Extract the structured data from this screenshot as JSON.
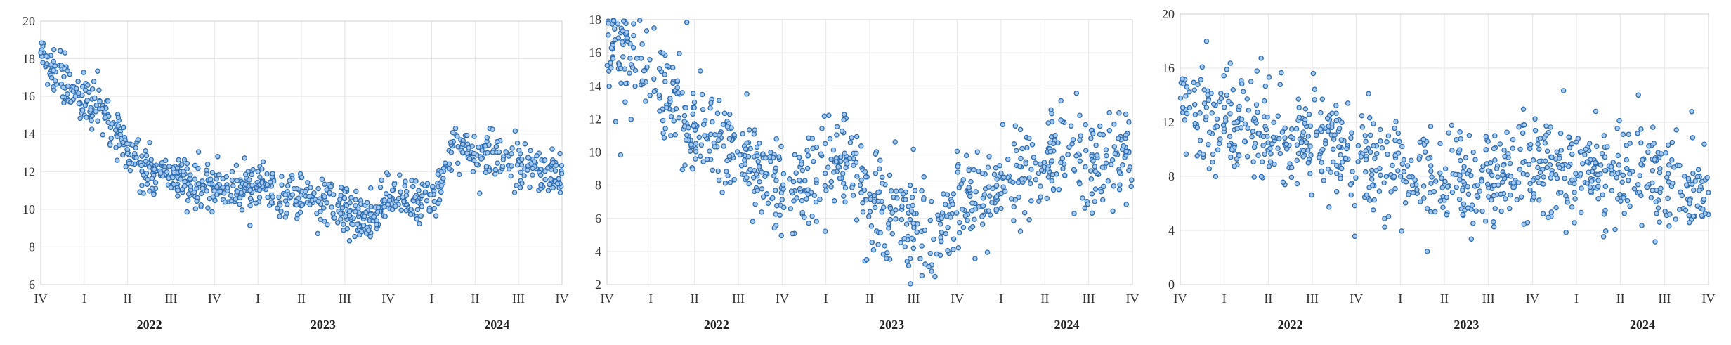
{
  "chart_data": [
    {
      "type": "scatter",
      "x_labels": [
        "IV",
        "I",
        "II",
        "III",
        "IV",
        "I",
        "II",
        "III",
        "IV",
        "I",
        "II",
        "III",
        "IV"
      ],
      "year_labels": [
        "2022",
        "2023",
        "2024"
      ],
      "ylim": [
        6,
        20
      ],
      "yticks": [
        6,
        8,
        10,
        12,
        14,
        16,
        18,
        20
      ],
      "grid": true,
      "color": "#2b6db5",
      "trend": [
        [
          0,
          18.4
        ],
        [
          0.5,
          17.0
        ],
        [
          1,
          15.8
        ],
        [
          1.5,
          15.1
        ],
        [
          2,
          13.2
        ],
        [
          2.3,
          12.1
        ],
        [
          3,
          11.8
        ],
        [
          4,
          11.0
        ],
        [
          5,
          11.2
        ],
        [
          6,
          10.6
        ],
        [
          7,
          10.2
        ],
        [
          7.5,
          9.2
        ],
        [
          8,
          10.6
        ],
        [
          9,
          10.4
        ],
        [
          9.3,
          12.0
        ],
        [
          9.5,
          13.3
        ],
        [
          10,
          13.0
        ],
        [
          11,
          12.5
        ],
        [
          12,
          11.8
        ]
      ],
      "spread": 0.6,
      "n_points": 900
    },
    {
      "type": "scatter",
      "x_labels": [
        "IV",
        "I",
        "II",
        "III",
        "IV",
        "I",
        "II",
        "III",
        "IV",
        "I",
        "II",
        "III",
        "IV"
      ],
      "year_labels": [
        "2022",
        "2023",
        "2024"
      ],
      "ylim": [
        2,
        18
      ],
      "yticks": [
        2,
        4,
        6,
        8,
        10,
        12,
        14,
        16,
        18
      ],
      "grid": true,
      "color": "#2b6db5",
      "trend": [
        [
          0,
          17.0
        ],
        [
          1,
          15.0
        ],
        [
          2,
          11.5
        ],
        [
          3,
          10.0
        ],
        [
          4,
          7.5
        ],
        [
          4.5,
          8.2
        ],
        [
          5,
          9.2
        ],
        [
          5.5,
          9.6
        ],
        [
          6,
          7.0
        ],
        [
          7,
          5.8
        ],
        [
          7.5,
          5.2
        ],
        [
          8,
          6.5
        ],
        [
          9,
          7.8
        ],
        [
          10,
          9.6
        ],
        [
          11,
          9.3
        ],
        [
          12,
          9.8
        ]
      ],
      "spread": 1.5,
      "n_points": 850
    },
    {
      "type": "scatter",
      "x_labels": [
        "IV",
        "I",
        "II",
        "III",
        "IV",
        "I",
        "II",
        "III",
        "IV",
        "I",
        "II",
        "III",
        "IV"
      ],
      "year_labels": [
        "2022",
        "2023",
        "2024"
      ],
      "ylim": [
        0,
        20
      ],
      "yticks": [
        0,
        4,
        8,
        12,
        16,
        20
      ],
      "grid": true,
      "color": "#2b6db5",
      "trend": [
        [
          0,
          13.0
        ],
        [
          1,
          12.3
        ],
        [
          2,
          11.0
        ],
        [
          3,
          10.4
        ],
        [
          4,
          9.3
        ],
        [
          5,
          8.8
        ],
        [
          6,
          7.6
        ],
        [
          7,
          7.8
        ],
        [
          8,
          8.8
        ],
        [
          9,
          8.4
        ],
        [
          10,
          8.0
        ],
        [
          11,
          7.5
        ],
        [
          12,
          6.8
        ]
      ],
      "spread": 1.8,
      "n_points": 850
    }
  ]
}
